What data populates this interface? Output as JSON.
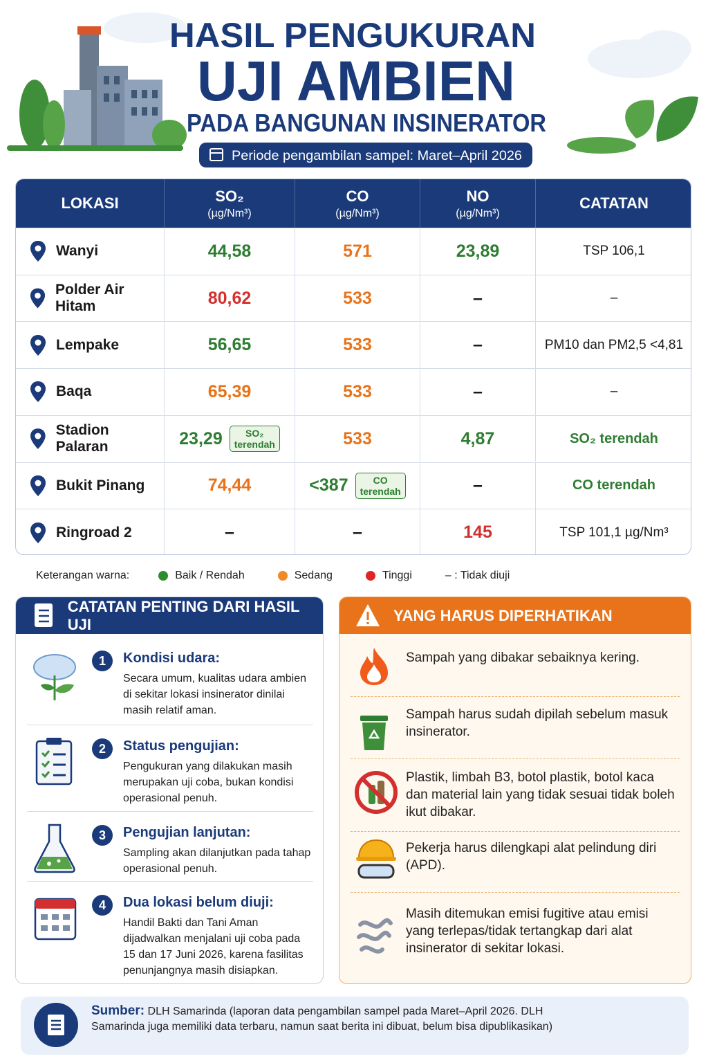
{
  "header": {
    "title_line1": "HASIL PENGUKURAN",
    "title_line2": "UJI AMBIEN",
    "title_line3": "PADA BANGUNAN INSINERATOR",
    "period": "Periode pengambilan sampel: Maret–April 2026"
  },
  "table": {
    "columns": [
      {
        "name": "LOKASI"
      },
      {
        "name": "SO₂",
        "unit": "(µg/Nm³)"
      },
      {
        "name": "CO",
        "unit": "(µg/Nm³)"
      },
      {
        "name": "NO",
        "unit": "(µg/Nm³)"
      },
      {
        "name": "CATATAN"
      }
    ],
    "rows": [
      {
        "location": "Wanyi",
        "cells": [
          {
            "text": "44,58",
            "color": "#2e7d32"
          },
          {
            "text": "571",
            "color": "#e8731a"
          },
          {
            "text": "23,89",
            "color": "#2e7d32"
          },
          {
            "text": "TSP 106,1"
          }
        ]
      },
      {
        "location": "Polder Air Hitam",
        "cells": [
          {
            "text": "80,62",
            "color": "#d32f2f"
          },
          {
            "text": "533",
            "color": "#e8731a"
          },
          {
            "text": "–"
          },
          {
            "text": "–"
          }
        ]
      },
      {
        "location": "Lempake",
        "cells": [
          {
            "text": "56,65",
            "color": "#2e7d32"
          },
          {
            "text": "533",
            "color": "#e8731a"
          },
          {
            "text": "–"
          },
          {
            "text": "PM10 dan PM2,5 <4,81"
          }
        ]
      },
      {
        "location": "Baqa",
        "cells": [
          {
            "text": "65,39",
            "color": "#e8731a"
          },
          {
            "text": "533",
            "color": "#e8731a"
          },
          {
            "text": "–"
          },
          {
            "text": "–"
          }
        ]
      },
      {
        "location": "Stadion Palaran",
        "cells": [
          {
            "text": "23,29",
            "color": "#2e7d32",
            "badge": [
              "SO₂",
              "terendah"
            ]
          },
          {
            "text": "533",
            "color": "#e8731a"
          },
          {
            "text": "4,87",
            "color": "#2e7d32"
          },
          {
            "text": "SO₂ terendah",
            "color": "#2e7d32"
          }
        ]
      },
      {
        "location": "Bukit Pinang",
        "cells": [
          {
            "text": "74,44",
            "color": "#e8731a"
          },
          {
            "text": "<387",
            "color": "#2e7d32",
            "badge": [
              "CO",
              "terendah"
            ]
          },
          {
            "text": "–"
          },
          {
            "text": "CO terendah",
            "color": "#2e7d32"
          }
        ]
      },
      {
        "location": "Ringroad 2",
        "cells": [
          {
            "text": "–"
          },
          {
            "text": "–"
          },
          {
            "text": "145",
            "color": "#d32f2f"
          },
          {
            "text": "TSP 101,1 µg/Nm³"
          }
        ]
      }
    ]
  },
  "legend": {
    "label": "Keterangan warna:",
    "items": [
      {
        "text": "Baik / Rendah",
        "color": "#2e8b2e"
      },
      {
        "text": "Sedang",
        "color": "#f08a24"
      },
      {
        "text": "Tinggi",
        "color": "#e02424"
      },
      {
        "text": "– : Tidak diuji"
      }
    ]
  },
  "notes": {
    "title": "CATATAN PENTING DARI HASIL UJI",
    "items": [
      {
        "number": "1",
        "title": "Kondisi udara:",
        "text": "Secara umum, kualitas udara ambien di sekitar lokasi insinerator dinilai masih relatif aman."
      },
      {
        "number": "2",
        "title": "Status pengujian:",
        "text": "Pengukuran yang dilakukan masih merupakan uji coba, bukan kondisi operasional penuh."
      },
      {
        "number": "3",
        "title": "Pengujian lanjutan:",
        "text": "Sampling akan dilanjutkan pada tahap operasional penuh."
      },
      {
        "number": "4",
        "title": "Dua lokasi belum diuji:",
        "text": "Handil Bakti dan Tani Aman dijadwalkan menjalani uji coba pada 15 dan 17 Juni 2026, karena fasilitas penunjangnya masih disiapkan."
      }
    ]
  },
  "warnings": {
    "title": "YANG HARUS DIPERHATIKAN",
    "items": [
      "Sampah yang dibakar sebaiknya kering.",
      "Sampah harus sudah dipilah sebelum masuk insinerator.",
      "Plastik, limbah B3, botol plastik, botol kaca dan material lain yang tidak sesuai tidak boleh ikut dibakar.",
      "Pekerja harus dilengkapi alat pelindung diri (APD).",
      "Masih ditemukan emisi fugitive atau emisi yang terlepas/tidak tertangkap dari alat insinerator di sekitar lokasi."
    ]
  },
  "source": {
    "label": "Sumber:",
    "text": "DLH Samarinda (laporan data pengambilan sampel pada Maret–April 2026. DLH Samarinda juga memiliki data terbaru, namun saat berita ini dibuat, belum bisa dipublikasikan)"
  }
}
